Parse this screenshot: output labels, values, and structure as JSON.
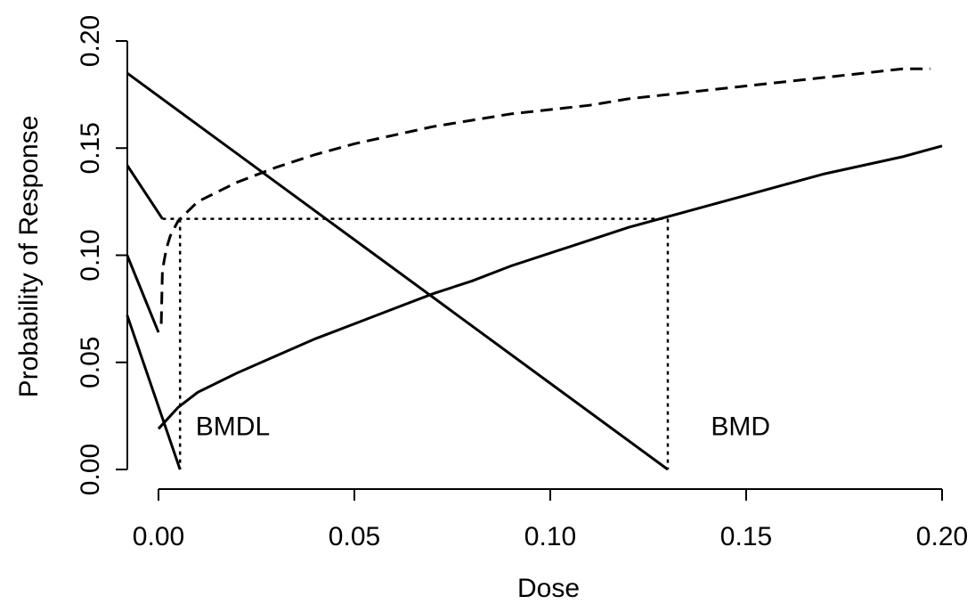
{
  "chart_data": {
    "type": "line",
    "xlabel": "Dose",
    "ylabel": "Probability of Response",
    "xlim": [
      -0.008,
      0.2
    ],
    "ylim": [
      0.0,
      0.2
    ],
    "x_ticks": [
      "0.00",
      "0.05",
      "0.10",
      "0.15",
      "0.20"
    ],
    "y_ticks": [
      "0.00",
      "0.05",
      "0.10",
      "0.15",
      "0.20"
    ],
    "grid": false,
    "legend": "none",
    "series": [
      {
        "style": "dashed",
        "x": [
          0.0007,
          0.001,
          0.002,
          0.003,
          0.005,
          0.01,
          0.02,
          0.03,
          0.04,
          0.05,
          0.06,
          0.07,
          0.08,
          0.09,
          0.1,
          0.11,
          0.12,
          0.13,
          0.14,
          0.15,
          0.16,
          0.17,
          0.18,
          0.19,
          0.197
        ],
        "y": [
          0.068,
          0.093,
          0.103,
          0.109,
          0.116,
          0.125,
          0.134,
          0.141,
          0.147,
          0.152,
          0.156,
          0.16,
          0.163,
          0.166,
          0.168,
          0.17,
          0.173,
          0.175,
          0.177,
          0.179,
          0.181,
          0.183,
          0.185,
          0.187,
          0.187
        ]
      },
      {
        "style": "solid",
        "x": [
          0.0,
          0.005,
          0.01,
          0.02,
          0.03,
          0.04,
          0.05,
          0.06,
          0.07,
          0.08,
          0.09,
          0.1,
          0.11,
          0.12,
          0.13,
          0.14,
          0.15,
          0.16,
          0.17,
          0.18,
          0.19,
          0.2
        ],
        "y": [
          0.019,
          0.029,
          0.036,
          0.045,
          0.053,
          0.061,
          0.068,
          0.075,
          0.082,
          0.088,
          0.095,
          0.101,
          0.107,
          0.113,
          0.118,
          0.123,
          0.128,
          0.133,
          0.138,
          0.142,
          0.146,
          0.151
        ]
      },
      {
        "style": "solid",
        "x": [
          -0.008,
          0.13
        ],
        "y": [
          0.185,
          0.0
        ]
      },
      {
        "style": "solid",
        "x": [
          -0.008,
          0.001
        ],
        "y": [
          0.142,
          0.117
        ]
      },
      {
        "style": "solid",
        "x": [
          -0.008,
          0.0
        ],
        "y": [
          0.1,
          0.064
        ]
      },
      {
        "style": "solid",
        "x": [
          -0.008,
          0.0055
        ],
        "y": [
          0.072,
          0.0
        ]
      }
    ],
    "reference_lines": [
      {
        "style": "dotted",
        "x": [
          0.001,
          0.13
        ],
        "y": [
          0.117,
          0.117
        ]
      },
      {
        "style": "dotted",
        "x": [
          0.0055,
          0.0055
        ],
        "y": [
          0.117,
          0.0
        ]
      },
      {
        "style": "dotted",
        "x": [
          0.13,
          0.13
        ],
        "y": [
          0.117,
          0.0
        ]
      }
    ],
    "annotations": [
      {
        "text": "BMDL",
        "x": 0.0095,
        "y": 0.016
      },
      {
        "text": "BMD",
        "x": 0.141,
        "y": 0.016
      }
    ]
  }
}
